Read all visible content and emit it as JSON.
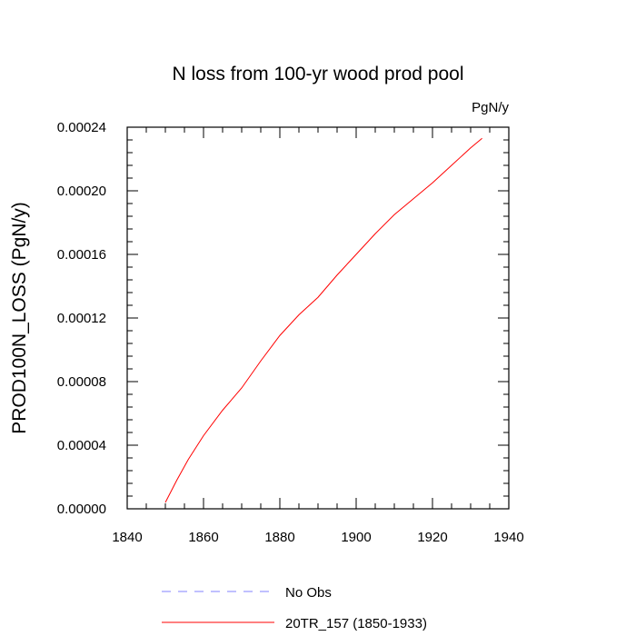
{
  "chart_data": {
    "type": "line",
    "title": "N loss from 100-yr wood prod pool",
    "units_label": "PgN/y",
    "xlabel": "",
    "ylabel": "PROD100N_LOSS  (PgN/y)",
    "xlim": [
      1840,
      1940
    ],
    "ylim": [
      0.0,
      0.00024
    ],
    "x_ticks": [
      1840,
      1860,
      1880,
      1900,
      1920,
      1940
    ],
    "x_tick_labels": [
      "1840",
      "1860",
      "1880",
      "1900",
      "1920",
      "1940"
    ],
    "y_ticks": [
      0.0,
      4e-05,
      8e-05,
      0.00012,
      0.00016,
      0.0002,
      0.00024
    ],
    "y_tick_labels": [
      "0.00000",
      "0.00004",
      "0.00008",
      "0.00012",
      "0.00016",
      "0.00020",
      "0.00024"
    ],
    "grid": false,
    "legend_placement": "bottom",
    "series": [
      {
        "name": "No Obs",
        "color": "#8080ff",
        "style": "dashed",
        "x": [],
        "y": []
      },
      {
        "name": "20TR_157 (1850-1933)",
        "color": "#ff0000",
        "style": "solid",
        "x": [
          1850,
          1853,
          1856,
          1860,
          1865,
          1870,
          1875,
          1880,
          1885,
          1890,
          1895,
          1900,
          1905,
          1910,
          1915,
          1920,
          1925,
          1930,
          1933
        ],
        "y": [
          4e-06,
          1.8e-05,
          3.1e-05,
          4.6e-05,
          6.2e-05,
          7.6e-05,
          9.3e-05,
          0.000109,
          0.000122,
          0.000133,
          0.000147,
          0.00016,
          0.000173,
          0.000185,
          0.000195,
          0.000205,
          0.000216,
          0.000227,
          0.000233
        ]
      }
    ]
  }
}
